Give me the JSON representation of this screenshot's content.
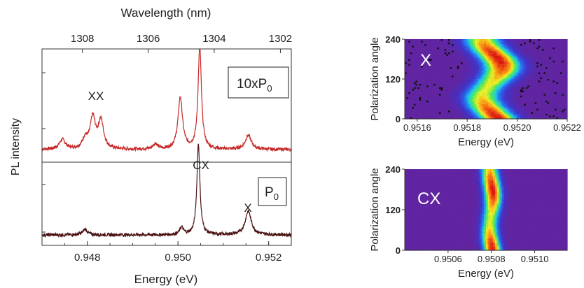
{
  "chart_data": [
    {
      "type": "line",
      "xlabel": "Energy (eV)",
      "ylabel": "PL intensity",
      "top_xlabel": "Wavelength (nm)",
      "xlim": [
        0.947,
        0.9525
      ],
      "xticks": [
        "0.948",
        "0.950",
        "0.952"
      ],
      "top_xticks": [
        "1308",
        "1306",
        "1304",
        "1302"
      ],
      "top_xtick_values_nm": [
        1308,
        1306,
        1304,
        1302
      ],
      "series": [
        {
          "name": "10xP0",
          "color": "#c62a2a",
          "baseline": 0.8,
          "peaks": [
            {
              "label": "XX",
              "x": 0.94812,
              "height": 1.1,
              "width": 7e-05
            },
            {
              "x": 0.9483,
              "height": 1.0,
              "width": 7e-05
            },
            {
              "x": 0.94745,
              "height": 0.35,
              "width": 8e-05
            },
            {
              "x": 0.94795,
              "height": 0.35,
              "width": 7e-05
            },
            {
              "x": 0.9495,
              "height": 0.2,
              "width": 6e-05
            },
            {
              "x": 0.95005,
              "height": 1.85,
              "width": 6e-05
            },
            {
              "label": "CX",
              "x": 0.95048,
              "height": 3.65,
              "width": 4.5e-05
            },
            {
              "label": "X",
              "x": 0.95155,
              "height": 0.5,
              "width": 8e-05
            }
          ]
        },
        {
          "name": "P0",
          "color": "#4a1212",
          "baseline": 0.3,
          "peaks": [
            {
              "x": 0.94795,
              "height": 0.2,
              "width": 6e-05
            },
            {
              "x": 0.95008,
              "height": 0.25,
              "width": 5e-05
            },
            {
              "label": "CX",
              "x": 0.95045,
              "height": 3.25,
              "width": 4e-05
            },
            {
              "label": "X",
              "x": 0.95155,
              "height": 0.85,
              "width": 8e-05
            }
          ]
        }
      ],
      "annotations": {
        "xx": "XX",
        "cx": "CX",
        "x": "X",
        "box_10xp0_main": "10xP",
        "box_10xp0_sub": "0",
        "box_p0_main": "P",
        "box_p0_sub": "0"
      }
    },
    {
      "type": "heatmap",
      "label": "X",
      "xlabel": "Energy (eV)",
      "ylabel": "Polarization angle",
      "xlim": [
        0.95155,
        0.9522
      ],
      "ylim": [
        0,
        240
      ],
      "xticks": [
        "0.9516",
        "0.9518",
        "0.9520",
        "0.9522"
      ],
      "yticks": [
        "0",
        "120",
        "240"
      ],
      "center_energy": 0.9519,
      "oscillation_amplitude": 4e-05,
      "linewidth": 5.5e-05
    },
    {
      "type": "heatmap",
      "label": "CX",
      "xlabel": "Energy (eV)",
      "ylabel": "Polarization angle",
      "xlim": [
        0.9504,
        0.95115
      ],
      "ylim": [
        0,
        240
      ],
      "xticks": [
        "0.9506",
        "0.9508",
        "0.9510"
      ],
      "yticks": [
        "0",
        "120",
        "240"
      ],
      "center_energy": 0.9508,
      "oscillation_amplitude": 8e-06,
      "linewidth": 3e-05
    }
  ]
}
